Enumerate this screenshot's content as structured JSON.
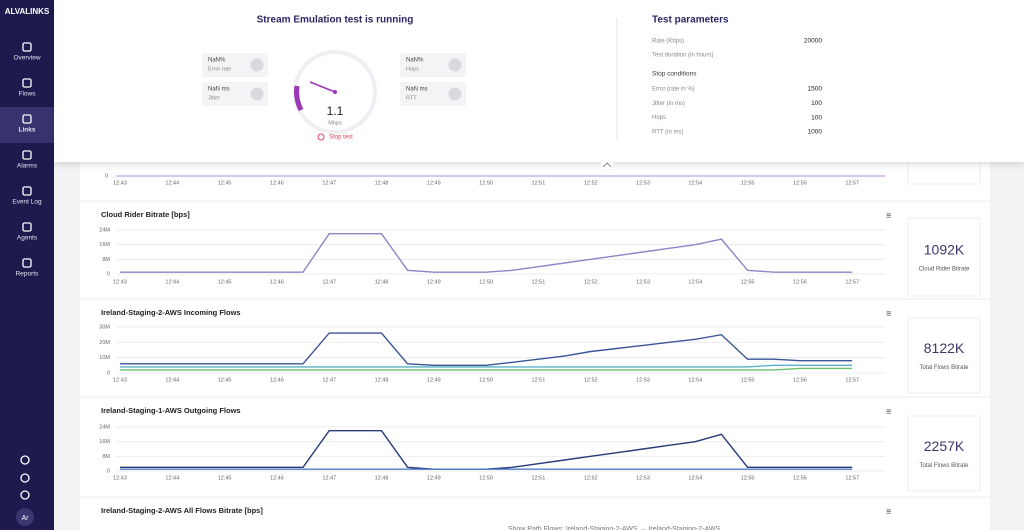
{
  "sidebar": {
    "logo": "ALVALINKS",
    "nav": [
      "Overview",
      "Flows",
      "Links",
      "Alarms",
      "Event Log",
      "Agents",
      "Reports"
    ],
    "active": 2,
    "avatar": "Ar"
  },
  "test": {
    "title": "Stream Emulation test is running",
    "metrics": [
      {
        "value": "NaN%",
        "label": "Error rate"
      },
      {
        "value": "NaN ms",
        "label": "Jitter"
      },
      {
        "value": "NaN%",
        "label": "Hops"
      },
      {
        "value": "NaN ms",
        "label": "RTT"
      }
    ],
    "gauge": {
      "value": "1.1",
      "unit": "Mbps"
    },
    "stop": "Stop test"
  },
  "parameters": {
    "title": "Test parameters",
    "rows": [
      {
        "label": "Rate (Kbps)",
        "value": 20000
      },
      {
        "label": "Test duration (in hours)"
      }
    ],
    "stop_title": "Stop conditions",
    "stop_rows": [
      {
        "label": "Error (rate in %)",
        "value": 1500
      },
      {
        "label": "Jitter (in ms)",
        "value": 100
      },
      {
        "label": "Hops",
        "value": 100
      },
      {
        "label": "RTT (in ms)",
        "value": 1000
      }
    ]
  },
  "time_axis": [
    "12:43",
    null,
    "12:44",
    null,
    "12:45",
    null,
    "12:46",
    null,
    "12:47",
    null,
    "12:48",
    null,
    "12:49",
    null,
    "12:50",
    null,
    "12:51",
    null,
    "12:52",
    null,
    "12:53",
    null,
    "12:54",
    null,
    "12:55",
    null,
    "12:56",
    null,
    "12:57"
  ],
  "top_strip": {
    "yticks": [
      0
    ]
  },
  "charts": [
    {
      "title": "Cloud Rider Bitrate [bps]",
      "ylim": [
        0,
        24000000
      ],
      "yticks": [
        0,
        {
          "value": 8000000,
          "label": "8M"
        },
        {
          "value": 16000000,
          "label": "16M"
        },
        {
          "value": 24000000,
          "label": "24M"
        }
      ],
      "series": [
        {
          "color": "#8e84c8",
          "values": [
            1000000,
            1000000,
            1000000,
            1000000,
            1000000,
            1000000,
            1000000,
            1000000,
            22000000,
            22000000,
            22000000,
            2000000,
            1000000,
            1000000,
            1000000,
            2000000,
            4000000,
            6000000,
            8000000,
            10000000,
            12000000,
            14000000,
            16000000,
            19000000,
            2000000,
            1000000,
            1000000,
            1000000,
            1000000
          ]
        }
      ],
      "stat": {
        "value": "1092K",
        "label": "Cloud Rider Bitrate"
      }
    },
    {
      "title": "Ireland-Staging-2-AWS Incoming Flows",
      "ylim": [
        0,
        30000000
      ],
      "yticks": [
        0,
        {
          "value": 10000000,
          "label": "10M"
        },
        {
          "value": 20000000,
          "label": "20M"
        },
        {
          "value": 30000000,
          "label": "30M"
        }
      ],
      "series": [
        {
          "color": "#3b5596",
          "values": [
            6000000,
            6000000,
            6000000,
            6000000,
            6000000,
            6000000,
            6000000,
            6000000,
            26000000,
            26000000,
            26000000,
            6000000,
            5000000,
            5000000,
            5000000,
            7000000,
            9000000,
            11000000,
            14000000,
            16000000,
            18000000,
            20000000,
            22000000,
            25000000,
            9000000,
            9000000,
            8000000,
            8000000,
            8000000
          ]
        },
        {
          "color": "#5ab0c8",
          "values": [
            4000000,
            4000000,
            4000000,
            4000000,
            4000000,
            4000000,
            4000000,
            4000000,
            4000000,
            4000000,
            4000000,
            4000000,
            4000000,
            4000000,
            4000000,
            4000000,
            4000000,
            4000000,
            4000000,
            4000000,
            4000000,
            4000000,
            4000000,
            4000000,
            4000000,
            5000000,
            5000000,
            5000000,
            5000000
          ]
        },
        {
          "color": "#6cc070",
          "values": [
            2000000,
            2000000,
            2000000,
            2000000,
            2000000,
            2000000,
            2000000,
            2000000,
            2000000,
            2000000,
            2000000,
            2000000,
            2000000,
            2000000,
            2000000,
            2000000,
            2000000,
            2000000,
            2000000,
            2000000,
            2000000,
            2000000,
            2000000,
            2000000,
            2000000,
            2000000,
            3000000,
            3000000,
            3000000
          ]
        }
      ],
      "stat": {
        "value": "8122K",
        "label": "Total Flows Bitrate"
      }
    },
    {
      "title": "Ireland-Staging-1-AWS Outgoing Flows",
      "ylim": [
        0,
        24000000
      ],
      "yticks": [
        0,
        {
          "value": 8000000,
          "label": "8M"
        },
        {
          "value": 16000000,
          "label": "16M"
        },
        {
          "value": 24000000,
          "label": "24M"
        }
      ],
      "series": [
        {
          "color": "#263b78",
          "values": [
            2000000,
            2000000,
            2000000,
            2000000,
            2000000,
            2000000,
            2000000,
            2000000,
            22000000,
            22000000,
            22000000,
            2000000,
            1000000,
            1000000,
            1000000,
            2000000,
            4000000,
            6000000,
            8000000,
            10000000,
            12000000,
            14000000,
            16000000,
            20000000,
            2000000,
            2000000,
            2000000,
            2000000,
            2000000
          ]
        },
        {
          "color": "#4f7cc4",
          "values": [
            1000000,
            1000000,
            1000000,
            1000000,
            1000000,
            1000000,
            1000000,
            1000000,
            1000000,
            1000000,
            1000000,
            1000000,
            1000000,
            1000000,
            1000000,
            1000000,
            1000000,
            1000000,
            1000000,
            1000000,
            1000000,
            1000000,
            1000000,
            1000000,
            1000000,
            1000000,
            1000000,
            1000000,
            1000000
          ]
        }
      ],
      "stat": {
        "value": "2257K",
        "label": "Total Flows Bitrate"
      }
    },
    {
      "title": "Ireland-Staging-2-AWS All Flows Bitrate [bps]"
    }
  ],
  "footer": "Show Path Flows: Ireland-Staging-2-AWS → Ireland-Staging-2-AWS"
}
